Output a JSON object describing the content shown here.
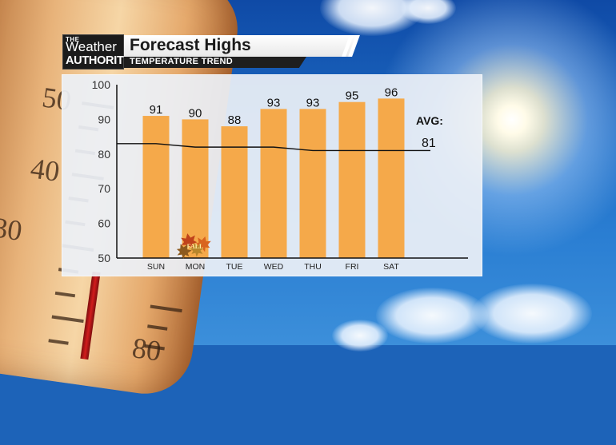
{
  "branding": {
    "logo_line1": "THE",
    "logo_line2": "Weather",
    "logo_line3": "AUTHORITY"
  },
  "header": {
    "title": "Forecast Highs",
    "subtitle": "TEMPERATURE TREND"
  },
  "chart_data": {
    "type": "bar",
    "title": "Forecast Highs",
    "subtitle": "TEMPERATURE TREND",
    "categories": [
      "SUN",
      "MON",
      "TUE",
      "WED",
      "THU",
      "FRI",
      "SAT"
    ],
    "values": [
      91,
      90,
      88,
      93,
      93,
      95,
      96
    ],
    "data_labels": [
      "91",
      "90",
      "88",
      "93",
      "93",
      "95",
      "96"
    ],
    "ylim": [
      50,
      100
    ],
    "yticks": [
      "50",
      "60",
      "70",
      "80",
      "90",
      "100"
    ],
    "average_line": {
      "label": "AVG:",
      "value_label": "81",
      "values": [
        83,
        82,
        82,
        82,
        81,
        81,
        81
      ]
    },
    "annotation": {
      "text": "FALL",
      "category": "MON",
      "icon": "maple-leaves-icon"
    },
    "grid": false,
    "legend": "none",
    "colors": {
      "bar": "#f5a94a",
      "avg_line": "#111111",
      "axis": "#111111"
    }
  }
}
